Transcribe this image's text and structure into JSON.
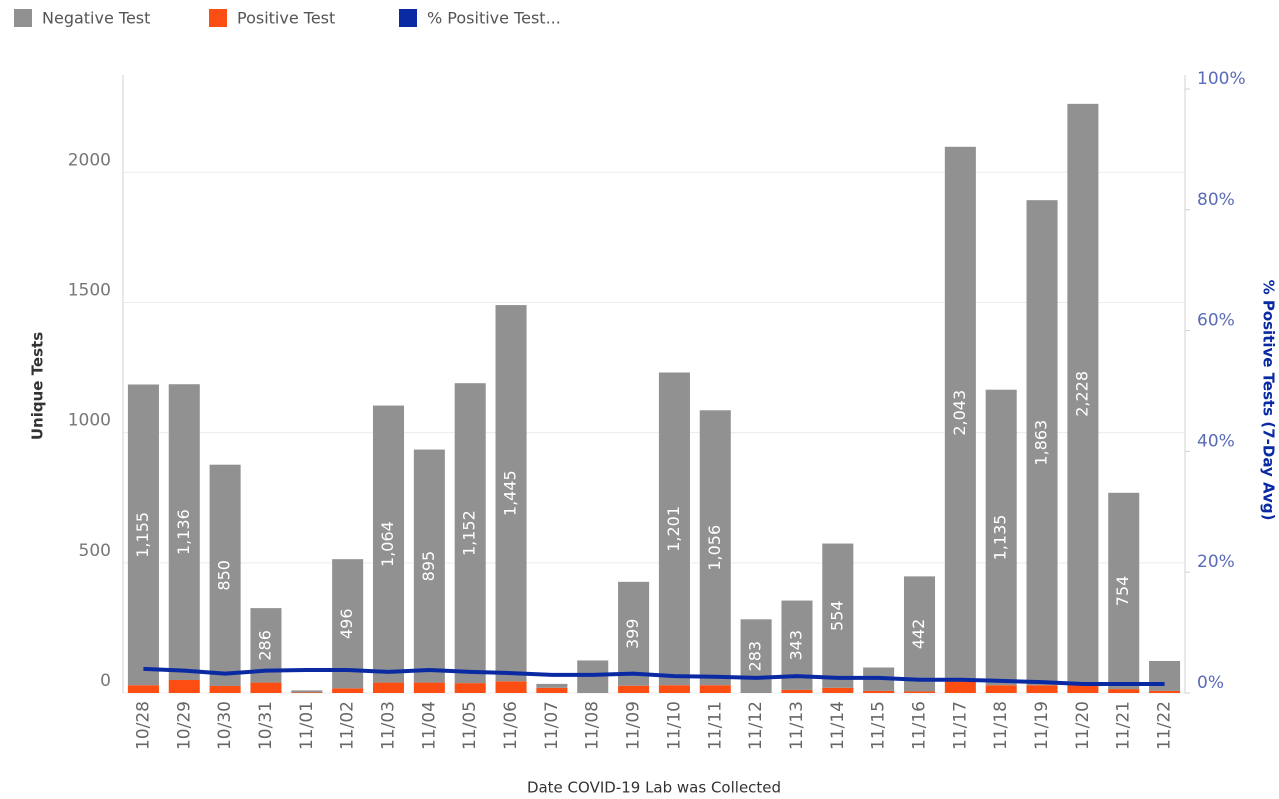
{
  "chart_data": {
    "type": "bar",
    "x_label": "Date COVID-19 Lab was Collected",
    "y_label": "Unique Tests",
    "y2_label": "% Positive Tests (7-Day Avg)",
    "categories": [
      "10/28",
      "10/29",
      "10/30",
      "10/31",
      "11/01",
      "11/02",
      "11/03",
      "11/04",
      "11/05",
      "11/06",
      "11/07",
      "11/08",
      "11/09",
      "11/10",
      "11/11",
      "11/12",
      "11/13",
      "11/14",
      "11/15",
      "11/16",
      "11/17",
      "11/18",
      "11/19",
      "11/20",
      "11/21",
      "11/22"
    ],
    "series": [
      {
        "name": "Negative Test",
        "color": "#919191",
        "values": [
          1155,
          1136,
          850,
          286,
          8,
          496,
          1064,
          895,
          1152,
          1445,
          15,
          125,
          399,
          1201,
          1056,
          283,
          343,
          554,
          90,
          442,
          2043,
          1135,
          1863,
          2228,
          754,
          115
        ],
        "value_labels": [
          "1,155",
          "1,136",
          "850",
          "286",
          null,
          "496",
          "1,064",
          "895",
          "1,152",
          "1,445",
          null,
          null,
          "399",
          "1,201",
          "1,056",
          "283",
          "343",
          "554",
          null,
          "442",
          "2,043",
          "1,135",
          "1,863",
          "2,228",
          "754",
          null
        ]
      },
      {
        "name": "Positive Test",
        "color": "#fc4e12",
        "values": [
          30,
          50,
          27,
          40,
          2,
          18,
          40,
          40,
          38,
          45,
          20,
          0,
          28,
          30,
          30,
          0,
          12,
          20,
          8,
          6,
          55,
          30,
          30,
          35,
          15,
          8
        ]
      },
      {
        "name": "% Positive Test...",
        "color": "#0a2aa3",
        "axis": "y2",
        "type": "line",
        "values": [
          4.0,
          3.7,
          3.2,
          3.7,
          3.8,
          3.8,
          3.5,
          3.8,
          3.5,
          3.3,
          3.0,
          3.0,
          3.2,
          2.8,
          2.7,
          2.5,
          2.8,
          2.5,
          2.5,
          2.2,
          2.2,
          2.0,
          1.8,
          1.5,
          1.5,
          1.5
        ]
      }
    ],
    "ylim": [
      0,
      2320
    ],
    "yticks": [
      0,
      500,
      1000,
      1500,
      2000
    ],
    "y2lim": [
      0,
      100
    ],
    "y2ticks": [
      {
        "value": 0,
        "label": "0%"
      },
      {
        "value": 20,
        "label": "20%"
      },
      {
        "value": 40,
        "label": "40%"
      },
      {
        "value": 60,
        "label": "60%"
      },
      {
        "value": 80,
        "label": "80%"
      },
      {
        "value": 100,
        "label": "100%"
      }
    ],
    "grid": true,
    "legend": "top-left"
  }
}
